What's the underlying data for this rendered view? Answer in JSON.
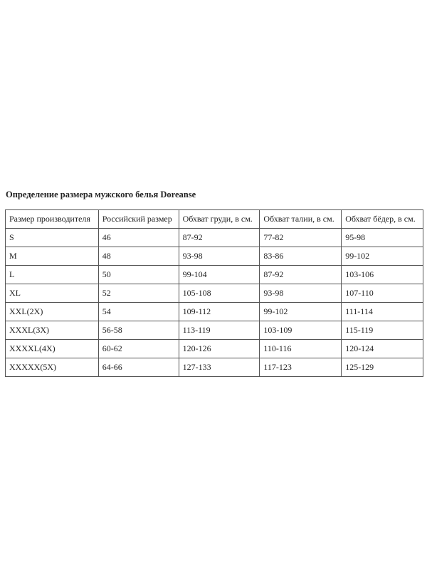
{
  "title": "Определение размера мужского белья Doreanse",
  "table": {
    "headers": [
      "Размер производителя",
      "Российский размер",
      "Обхват груди, в см.",
      "Обхват талии, в см.",
      "Обхват бёдер, в см."
    ],
    "rows": [
      [
        "S",
        "46",
        "87-92",
        "77-82",
        "95-98"
      ],
      [
        "M",
        "48",
        "93-98",
        "83-86",
        "99-102"
      ],
      [
        "L",
        "50",
        "99-104",
        "87-92",
        "103-106"
      ],
      [
        "XL",
        "52",
        "105-108",
        "93-98",
        "107-110"
      ],
      [
        "XXL(2X)",
        "54",
        "109-112",
        "99-102",
        "111-114"
      ],
      [
        "XXXL(3X)",
        "56-58",
        "113-119",
        "103-109",
        "115-119"
      ],
      [
        "XXXXL(4X)",
        "60-62",
        "120-126",
        "110-116",
        "120-124"
      ],
      [
        "XXXXX(5X)",
        "64-66",
        "127-133",
        "117-123",
        "125-129"
      ]
    ]
  }
}
